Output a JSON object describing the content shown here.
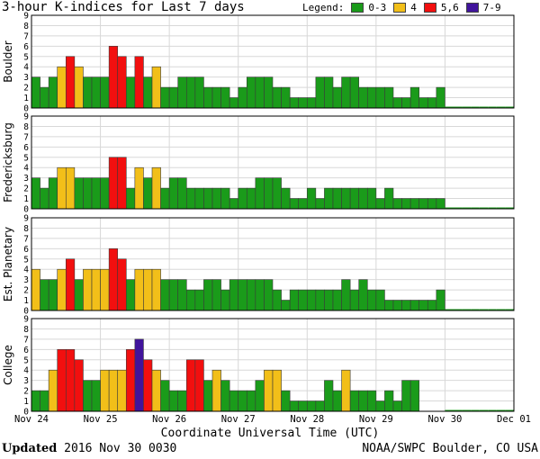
{
  "header": {
    "title": "3-hour K-indices for Last 7 days",
    "legend_label": "Legend:",
    "legend": [
      {
        "label": "0-3",
        "color": "#1a9b1a"
      },
      {
        "label": "4",
        "color": "#f2bf19"
      },
      {
        "label": "5,6",
        "color": "#f20f0f"
      },
      {
        "label": "7-9",
        "color": "#41149c"
      }
    ]
  },
  "footer": {
    "updated_label": "Updated",
    "updated_value": "2016 Nov 30 0030",
    "source": "NOAA/SWPC Boulder, CO USA"
  },
  "chart_data": {
    "type": "bar",
    "title": "3-hour K-indices for Last 7 days",
    "xlabel": "Coordinate Universal Time (UTC)",
    "x_ticks": [
      "Nov 24",
      "Nov 25",
      "Nov 26",
      "Nov 27",
      "Nov 28",
      "Nov 29",
      "Nov 30",
      "Dec 01"
    ],
    "ylim": [
      0,
      9
    ],
    "y_ticks": [
      "0",
      "1",
      "2",
      "3",
      "4",
      "5",
      "6",
      "7",
      "8",
      "9"
    ],
    "grid": true,
    "bins_per_day": 8,
    "color_scale": [
      {
        "range": "0-3",
        "color": "#1a9b1a"
      },
      {
        "range": "4",
        "color": "#f2bf19"
      },
      {
        "range": "5,6",
        "color": "#f20f0f"
      },
      {
        "range": "7-9",
        "color": "#41149c"
      }
    ],
    "panels": [
      {
        "name": "Boulder",
        "values": [
          3,
          2,
          3,
          4,
          5,
          4,
          3,
          3,
          3,
          6,
          5,
          3,
          5,
          3,
          4,
          2,
          2,
          3,
          3,
          3,
          2,
          2,
          2,
          1,
          2,
          3,
          3,
          3,
          2,
          2,
          1,
          1,
          1,
          3,
          3,
          2,
          3,
          3,
          2,
          2,
          2,
          2,
          1,
          1,
          2,
          1,
          1,
          2
        ]
      },
      {
        "name": "Fredericksburg",
        "values": [
          3,
          2,
          3,
          4,
          4,
          3,
          3,
          3,
          3,
          5,
          5,
          2,
          4,
          3,
          4,
          2,
          3,
          3,
          2,
          2,
          2,
          2,
          2,
          1,
          2,
          2,
          3,
          3,
          3,
          2,
          1,
          1,
          2,
          1,
          2,
          2,
          2,
          2,
          2,
          2,
          1,
          2,
          1,
          1,
          1,
          1,
          1,
          1
        ]
      },
      {
        "name": "Est. Planetary",
        "values": [
          4,
          3,
          3,
          4,
          5,
          3,
          4,
          4,
          4,
          6,
          5,
          3,
          4,
          4,
          4,
          3,
          3,
          3,
          2,
          2,
          3,
          3,
          2,
          3,
          3,
          3,
          3,
          3,
          2,
          1,
          2,
          2,
          2,
          2,
          2,
          2,
          3,
          2,
          3,
          2,
          2,
          1,
          1,
          1,
          1,
          1,
          1,
          2
        ]
      },
      {
        "name": "College",
        "values": [
          2,
          2,
          4,
          6,
          6,
          5,
          3,
          3,
          4,
          4,
          4,
          6,
          7,
          5,
          4,
          3,
          2,
          2,
          5,
          5,
          3,
          4,
          3,
          2,
          2,
          2,
          3,
          4,
          4,
          2,
          1,
          1,
          1,
          1,
          3,
          2,
          4,
          2,
          2,
          2,
          1,
          2,
          1,
          3,
          3,
          0,
          0,
          0
        ]
      }
    ]
  }
}
